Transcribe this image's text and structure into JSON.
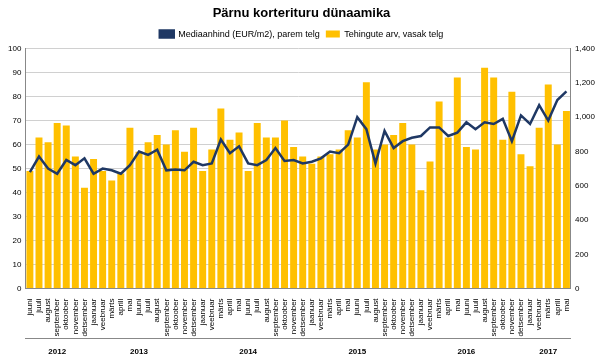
{
  "chart_data": {
    "type": "bar",
    "title": "Pärnu korterituru dünaamika",
    "categories": [
      "juuni",
      "juuli",
      "august",
      "september",
      "oktoober",
      "november",
      "detsember",
      "jaanuar",
      "veebruar",
      "märts",
      "aprill",
      "mai",
      "juuni",
      "juuli",
      "august",
      "september",
      "oktoober",
      "november",
      "detsember",
      "jaanuar",
      "veebruar",
      "märts",
      "aprill",
      "mai",
      "juuni",
      "juuli",
      "august",
      "september",
      "oktoober",
      "november",
      "detsember",
      "jaanuar",
      "veebruar",
      "märts",
      "aprill",
      "mai",
      "juuni",
      "juuli",
      "august",
      "september",
      "oktoober",
      "november",
      "detsember",
      "jaanuar",
      "veebruar",
      "märts",
      "aprill",
      "mai",
      "juuni",
      "juuli",
      "august",
      "september",
      "oktoober",
      "november",
      "detsember",
      "jaanuar",
      "veebruar",
      "märts",
      "aprill",
      "mai"
    ],
    "year_labels": [
      null,
      null,
      null,
      "2012",
      null,
      null,
      null,
      null,
      null,
      null,
      null,
      null,
      "2013",
      null,
      null,
      null,
      null,
      null,
      null,
      null,
      null,
      null,
      null,
      null,
      "2014",
      null,
      null,
      null,
      null,
      null,
      null,
      null,
      null,
      null,
      null,
      null,
      "2015",
      null,
      null,
      null,
      null,
      null,
      null,
      null,
      null,
      null,
      null,
      null,
      "2016",
      null,
      null,
      null,
      null,
      null,
      null,
      null,
      null,
      "2017",
      null,
      null
    ],
    "series": [
      {
        "name": "Tehingute arv, vasak telg",
        "type": "bar",
        "color": "#ffc000",
        "values": [
          49,
          63,
          61,
          69,
          68,
          55,
          42,
          54,
          49,
          45,
          48,
          67,
          57,
          61,
          64,
          60,
          66,
          57,
          67,
          49,
          58,
          75,
          62,
          65,
          49,
          69,
          63,
          63,
          70,
          59,
          55,
          52,
          55,
          56,
          58,
          66,
          63,
          86,
          58,
          60,
          64,
          69,
          60,
          41,
          53,
          78,
          63,
          88,
          59,
          58,
          92,
          88,
          62,
          82,
          56,
          51,
          67,
          85,
          60,
          74
        ]
      },
      {
        "name": "Mediaanhind (EUR/m2), parem telg",
        "type": "line",
        "color": "#1f3864",
        "axis": "y2",
        "values": [
          680,
          770,
          700,
          670,
          750,
          720,
          760,
          670,
          700,
          690,
          670,
          720,
          800,
          780,
          810,
          690,
          695,
          690,
          740,
          720,
          730,
          870,
          790,
          830,
          730,
          720,
          750,
          820,
          745,
          750,
          730,
          740,
          760,
          800,
          790,
          840,
          1000,
          930,
          730,
          920,
          820,
          860,
          880,
          890,
          940,
          940,
          890,
          910,
          970,
          930,
          970,
          960,
          990,
          860,
          1010,
          960,
          1070,
          980,
          1100,
          1150
        ]
      }
    ],
    "ylim": [
      0,
      100
    ],
    "yticks": [
      0,
      10,
      20,
      30,
      40,
      50,
      60,
      70,
      80,
      90,
      100
    ],
    "y2lim": [
      0,
      1400
    ],
    "y2ticks": [
      0,
      200,
      400,
      600,
      800,
      1000,
      1200,
      1400
    ],
    "grid": true,
    "legend": "top"
  }
}
